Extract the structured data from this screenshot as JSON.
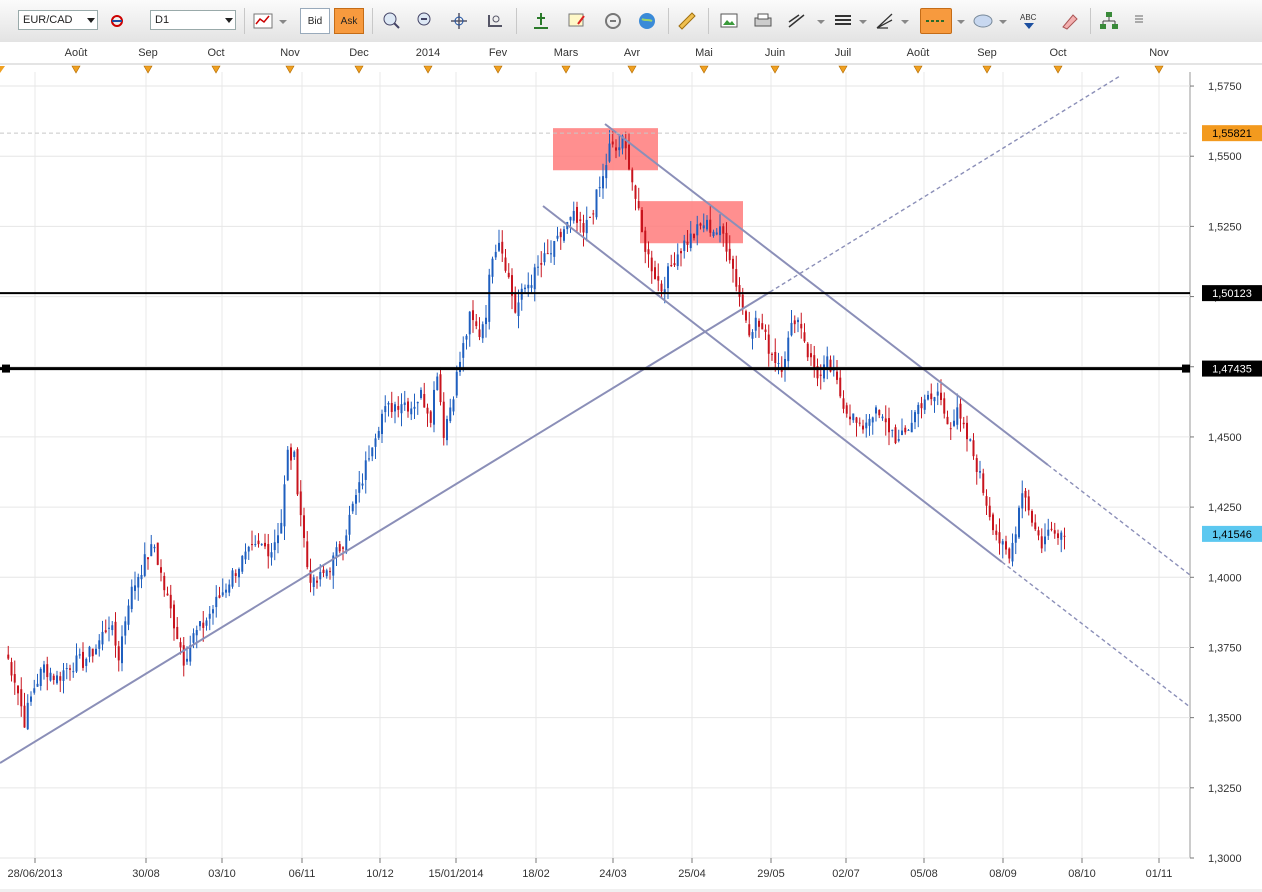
{
  "toolbar": {
    "symbol": "EUR/CAD",
    "timeframe": "D1",
    "bid_label": "Bid",
    "ask_label": "Ask",
    "icons": [
      "chart-type-icon",
      "dropdown-icon",
      "crosshair-icon",
      "zoom-in-icon",
      "zoom-out-icon",
      "autoscroll-icon",
      "indicator-icon",
      "level-icon",
      "notes-icon",
      "link-icon",
      "globe-icon",
      "ruler-icon",
      "screenshot-icon",
      "print-icon",
      "trendline-tool-icon",
      "lines-tool-icon",
      "fibonacci-icon",
      "horizontal-line-icon",
      "shape-icon",
      "text-icon",
      "eraser-icon",
      "objects-tree-icon",
      "more-icon"
    ]
  },
  "chart_data": {
    "type": "candlestick",
    "symbol": "EUR/CAD",
    "timeframe": "D1",
    "ylim": [
      1.3,
      1.58
    ],
    "y_ticks": [
      "1,5750",
      "1,5500",
      "1,5250",
      "1,5000",
      "1,4750",
      "1,4500",
      "1,4250",
      "1,4000",
      "1,3750",
      "1,3500",
      "1,3250",
      "1,3000"
    ],
    "top_month_labels": [
      "Août",
      "Sep",
      "Oct",
      "Nov",
      "Dec",
      "2014",
      "Fev",
      "Mars",
      "Avr",
      "Mai",
      "Juin",
      "Juil",
      "Août",
      "Sep",
      "Oct",
      "Nov"
    ],
    "bottom_date_labels": [
      "28/06/2013",
      "30/08",
      "03/10",
      "06/11",
      "10/12",
      "15/01/2014",
      "18/02",
      "24/03",
      "25/04",
      "29/05",
      "02/07",
      "05/08",
      "08/09",
      "08/10",
      "01/11"
    ],
    "price_labels": [
      {
        "value": "1,55821",
        "kind": "high",
        "color": "#f39a1e"
      },
      {
        "value": "1,50123",
        "kind": "level",
        "color": "#000000"
      },
      {
        "value": "1,47435",
        "kind": "level",
        "color": "#000000"
      },
      {
        "value": "1,41546",
        "kind": "last",
        "color": "#5cc8f0"
      }
    ],
    "horizontal_levels": [
      1.50123,
      1.47435
    ],
    "high_level": 1.55821,
    "last_price": 1.41546,
    "colors": {
      "up": "#1f5fbf",
      "down": "#c8141e",
      "zone": "#ff7b7b",
      "trendline": "#8b8fb8"
    },
    "price_path_anchors": [
      [
        0,
        1.374
      ],
      [
        3,
        1.364
      ],
      [
        6,
        1.349
      ],
      [
        9,
        1.361
      ],
      [
        12,
        1.368
      ],
      [
        16,
        1.364
      ],
      [
        20,
        1.369
      ],
      [
        24,
        1.37
      ],
      [
        28,
        1.375
      ],
      [
        32,
        1.384
      ],
      [
        35,
        1.372
      ],
      [
        38,
        1.392
      ],
      [
        41,
        1.401
      ],
      [
        44,
        1.408
      ],
      [
        46,
        1.411
      ],
      [
        49,
        1.396
      ],
      [
        52,
        1.384
      ],
      [
        55,
        1.371
      ],
      [
        58,
        1.379
      ],
      [
        61,
        1.383
      ],
      [
        64,
        1.389
      ],
      [
        67,
        1.395
      ],
      [
        70,
        1.401
      ],
      [
        73,
        1.406
      ],
      [
        76,
        1.409
      ],
      [
        79,
        1.411
      ],
      [
        82,
        1.41
      ],
      [
        85,
        1.42
      ],
      [
        87,
        1.444
      ],
      [
        89,
        1.442
      ],
      [
        91,
        1.423
      ],
      [
        93,
        1.404
      ],
      [
        95,
        1.397
      ],
      [
        98,
        1.401
      ],
      [
        101,
        1.406
      ],
      [
        104,
        1.413
      ],
      [
        107,
        1.425
      ],
      [
        110,
        1.435
      ],
      [
        113,
        1.449
      ],
      [
        116,
        1.458
      ],
      [
        119,
        1.461
      ],
      [
        122,
        1.463
      ],
      [
        125,
        1.461
      ],
      [
        128,
        1.465
      ],
      [
        131,
        1.458
      ],
      [
        133,
        1.474
      ],
      [
        135,
        1.452
      ],
      [
        137,
        1.461
      ],
      [
        140,
        1.477
      ],
      [
        143,
        1.492
      ],
      [
        146,
        1.487
      ],
      [
        148,
        1.495
      ],
      [
        150,
        1.516
      ],
      [
        152,
        1.521
      ],
      [
        154,
        1.512
      ],
      [
        157,
        1.495
      ],
      [
        160,
        1.503
      ],
      [
        163,
        1.508
      ],
      [
        166,
        1.513
      ],
      [
        169,
        1.517
      ],
      [
        172,
        1.524
      ],
      [
        175,
        1.528
      ],
      [
        178,
        1.522
      ],
      [
        181,
        1.532
      ],
      [
        184,
        1.542
      ],
      [
        186,
        1.553
      ],
      [
        188,
        1.552
      ],
      [
        190,
        1.555
      ],
      [
        192,
        1.548
      ],
      [
        194,
        1.535
      ],
      [
        196,
        1.522
      ],
      [
        198,
        1.514
      ],
      [
        200,
        1.508
      ],
      [
        202,
        1.503
      ],
      [
        204,
        1.508
      ],
      [
        206,
        1.514
      ],
      [
        209,
        1.519
      ],
      [
        212,
        1.522
      ],
      [
        215,
        1.526
      ],
      [
        218,
        1.524
      ],
      [
        221,
        1.522
      ],
      [
        223,
        1.515
      ],
      [
        225,
        1.505
      ],
      [
        227,
        1.496
      ],
      [
        229,
        1.489
      ],
      [
        231,
        1.491
      ],
      [
        233,
        1.488
      ],
      [
        235,
        1.482
      ],
      [
        237,
        1.478
      ],
      [
        239,
        1.476
      ],
      [
        241,
        1.484
      ],
      [
        243,
        1.493
      ],
      [
        245,
        1.49
      ],
      [
        247,
        1.48
      ],
      [
        249,
        1.474
      ],
      [
        251,
        1.471
      ],
      [
        253,
        1.476
      ],
      [
        255,
        1.472
      ],
      [
        257,
        1.465
      ],
      [
        259,
        1.46
      ],
      [
        261,
        1.457
      ],
      [
        263,
        1.452
      ],
      [
        265,
        1.456
      ],
      [
        267,
        1.459
      ],
      [
        269,
        1.457
      ],
      [
        271,
        1.454
      ],
      [
        273,
        1.452
      ],
      [
        275,
        1.448
      ],
      [
        277,
        1.451
      ],
      [
        279,
        1.456
      ],
      [
        281,
        1.461
      ],
      [
        283,
        1.464
      ],
      [
        285,
        1.462
      ],
      [
        287,
        1.466
      ],
      [
        289,
        1.459
      ],
      [
        291,
        1.455
      ],
      [
        293,
        1.458
      ],
      [
        295,
        1.452
      ],
      [
        297,
        1.447
      ],
      [
        299,
        1.44
      ],
      [
        301,
        1.431
      ],
      [
        303,
        1.423
      ],
      [
        305,
        1.416
      ],
      [
        307,
        1.41
      ],
      [
        309,
        1.406
      ],
      [
        311,
        1.418
      ],
      [
        313,
        1.432
      ],
      [
        315,
        1.425
      ],
      [
        317,
        1.417
      ],
      [
        319,
        1.412
      ],
      [
        321,
        1.416
      ],
      [
        323,
        1.418
      ],
      [
        325,
        1.416
      ],
      [
        326,
        1.415
      ]
    ],
    "zones": [
      {
        "from_price": 1.56,
        "to_price": 1.545
      },
      {
        "from_price": 1.534,
        "to_price": 1.519
      }
    ]
  }
}
